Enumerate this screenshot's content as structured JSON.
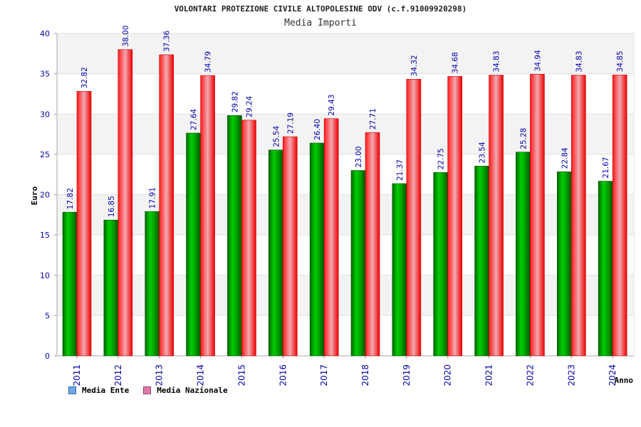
{
  "colors": {
    "ente": "#00aa00",
    "nazionale": "#ee1111",
    "legend_ente": "#6fa8e8",
    "legend_nazionale": "#e07aa8",
    "axis_text": "#0000aa",
    "band": "#f3f3f3"
  },
  "chart_data": {
    "type": "bar",
    "title": "VOLONTARI PROTEZIONE CIVILE ALTOPOLESINE ODV (c.f.91009920298)",
    "subtitle": "Media Importi",
    "xlabel": "Anno",
    "ylabel": "Euro",
    "ylim": [
      0,
      40
    ],
    "yticks": [
      0,
      5,
      10,
      15,
      20,
      25,
      30,
      35,
      40
    ],
    "yticks_labels": [
      "0",
      "5",
      "10",
      "15",
      "20",
      "25",
      "30",
      "35",
      "40"
    ],
    "grid": true,
    "legend_position": "bottom-left",
    "categories": [
      "2011",
      "2012",
      "2013",
      "2014",
      "2015",
      "2016",
      "2017",
      "2018",
      "2019",
      "2020",
      "2021",
      "2022",
      "2023",
      "2024"
    ],
    "series": [
      {
        "name": "Media Ente",
        "values": [
          17.82,
          16.85,
          17.91,
          27.64,
          29.82,
          25.54,
          26.4,
          23.0,
          21.37,
          22.75,
          23.54,
          25.28,
          22.84,
          21.67
        ],
        "labels": [
          "17.82",
          "16.85",
          "17.91",
          "27.64",
          "29.82",
          "25.54",
          "26.40",
          "23.00",
          "21.37",
          "22.75",
          "23.54",
          "25.28",
          "22.84",
          "21.67"
        ]
      },
      {
        "name": "Media Nazionale",
        "values": [
          32.82,
          38.0,
          37.36,
          34.79,
          29.24,
          27.19,
          29.43,
          27.71,
          34.32,
          34.68,
          34.83,
          34.94,
          34.83,
          34.85
        ],
        "labels": [
          "32.82",
          "38.00",
          "37.36",
          "34.79",
          "29.24",
          "27.19",
          "29.43",
          "27.71",
          "34.32",
          "34.68",
          "34.83",
          "34.94",
          "34.83",
          "34.85"
        ]
      }
    ]
  }
}
